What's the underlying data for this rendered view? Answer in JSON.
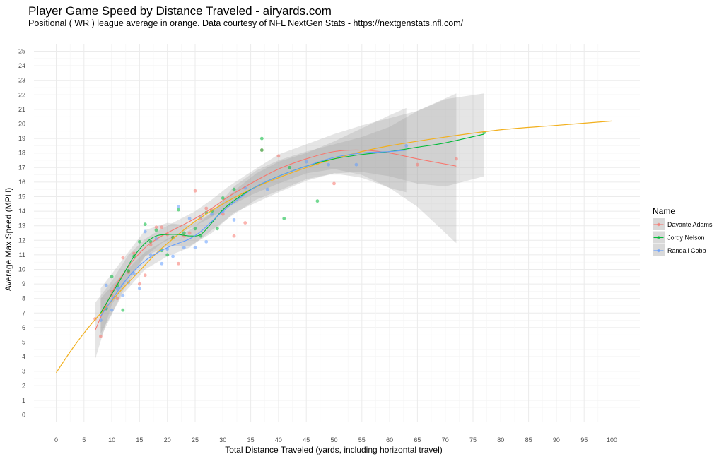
{
  "chart_data": {
    "type": "scatter",
    "title": "Player Game Speed by Distance Traveled - airyards.com",
    "subtitle": "Positional ( WR ) league average in orange. Data courtesy of NFL NextGen Stats - https://nextgenstats.nfl.com/",
    "xlabel": "Total Distance Traveled (yards, including horizontal travel)",
    "ylabel": "Average Max Speed (MPH)",
    "xlim": [
      0,
      100
    ],
    "ylim": [
      0,
      25
    ],
    "xticks": [
      0,
      5,
      10,
      15,
      20,
      25,
      30,
      35,
      40,
      45,
      50,
      55,
      60,
      65,
      70,
      75,
      80,
      85,
      90,
      95,
      100
    ],
    "yticks": [
      0,
      1,
      2,
      3,
      4,
      5,
      6,
      7,
      8,
      9,
      10,
      11,
      12,
      13,
      14,
      15,
      16,
      17,
      18,
      19,
      20,
      21,
      22,
      23,
      24,
      25
    ],
    "grid": true,
    "legend": {
      "title": "Name",
      "position": "right"
    },
    "league_average": {
      "color": "#F2B01E",
      "x": [
        0,
        3,
        6,
        9,
        12,
        15,
        18,
        21,
        25,
        30,
        35,
        40,
        45,
        50,
        55,
        60,
        70,
        80,
        90,
        100
      ],
      "y": [
        2.9,
        4.6,
        6.1,
        7.4,
        8.7,
        9.9,
        11.1,
        12.1,
        13.3,
        14.5,
        15.5,
        16.3,
        17.0,
        17.6,
        18.1,
        18.5,
        19.1,
        19.6,
        19.9,
        20.2
      ]
    },
    "series": [
      {
        "name": "Davante Adams",
        "color": "#F8766D",
        "points": [
          [
            7,
            6.6
          ],
          [
            8,
            5.4
          ],
          [
            9,
            7.4
          ],
          [
            10,
            8.5
          ],
          [
            10,
            8.2
          ],
          [
            11,
            8.0
          ],
          [
            12,
            10.8
          ],
          [
            13,
            9.8
          ],
          [
            14,
            11.1
          ],
          [
            15,
            9.0
          ],
          [
            16,
            9.6
          ],
          [
            17,
            11.7
          ],
          [
            18,
            12.9
          ],
          [
            19,
            12.9
          ],
          [
            20,
            12.4
          ],
          [
            21,
            12.2
          ],
          [
            22,
            10.4
          ],
          [
            23,
            12.3
          ],
          [
            24,
            12.5
          ],
          [
            25,
            15.4
          ],
          [
            26,
            13.5
          ],
          [
            27,
            14.2
          ],
          [
            28,
            14.1
          ],
          [
            30,
            13.8
          ],
          [
            32,
            12.3
          ],
          [
            34,
            13.2
          ],
          [
            37,
            18.2
          ],
          [
            40,
            17.8
          ],
          [
            47,
            17.3
          ],
          [
            50,
            15.9
          ],
          [
            65,
            17.2
          ],
          [
            72,
            17.6
          ]
        ],
        "fit_x": [
          7,
          10,
          13,
          16,
          19,
          22,
          25,
          28,
          31,
          35,
          40,
          45,
          50,
          55,
          60,
          65,
          72
        ],
        "fit_y": [
          5.8,
          8.4,
          10.2,
          11.5,
          12.3,
          12.9,
          13.5,
          14.2,
          15.0,
          15.9,
          16.9,
          17.6,
          18.1,
          18.2,
          18.0,
          17.6,
          17.1
        ],
        "band": [
          [
            7,
            3.8,
            7.7
          ],
          [
            10,
            7.6,
            9.2
          ],
          [
            13,
            9.4,
            11.0
          ],
          [
            16,
            10.9,
            12.1
          ],
          [
            19,
            11.8,
            12.8
          ],
          [
            22,
            12.4,
            13.4
          ],
          [
            25,
            13.0,
            14.0
          ],
          [
            28,
            13.6,
            14.8
          ],
          [
            31,
            14.3,
            15.7
          ],
          [
            35,
            15.1,
            16.7
          ],
          [
            40,
            15.9,
            17.9
          ],
          [
            45,
            16.6,
            18.6
          ],
          [
            50,
            16.9,
            19.3
          ],
          [
            55,
            16.5,
            19.9
          ],
          [
            60,
            15.6,
            20.4
          ],
          [
            65,
            14.3,
            20.9
          ],
          [
            72,
            11.8,
            22.1
          ]
        ]
      },
      {
        "name": "Jordy Nelson",
        "color": "#00BA38",
        "points": [
          [
            9,
            7.3
          ],
          [
            10,
            9.5
          ],
          [
            11,
            8.9
          ],
          [
            12,
            7.2
          ],
          [
            13,
            9.9
          ],
          [
            14,
            10.9
          ],
          [
            15,
            11.9
          ],
          [
            16,
            13.1
          ],
          [
            17,
            11.9
          ],
          [
            18,
            12.7
          ],
          [
            19,
            11.3
          ],
          [
            20,
            11.0
          ],
          [
            21,
            12.2
          ],
          [
            22,
            14.1
          ],
          [
            23,
            12.5
          ],
          [
            25,
            12.8
          ],
          [
            26,
            12.3
          ],
          [
            27,
            13.9
          ],
          [
            28,
            14.0
          ],
          [
            29,
            12.8
          ],
          [
            30,
            14.9
          ],
          [
            32,
            15.5
          ],
          [
            37,
            19.0
          ],
          [
            37,
            18.2
          ],
          [
            41,
            13.5
          ],
          [
            42,
            17.0
          ],
          [
            47,
            14.7
          ],
          [
            77,
            19.4
          ]
        ],
        "fit_x": [
          8,
          10,
          12,
          14,
          16,
          18,
          20,
          22,
          24,
          26,
          28,
          30,
          33,
          36,
          40,
          45,
          50,
          55,
          60,
          65,
          70,
          77
        ],
        "fit_y": [
          7.0,
          8.3,
          9.6,
          10.9,
          11.8,
          12.3,
          12.4,
          12.4,
          12.3,
          12.4,
          13.2,
          14.1,
          15.0,
          15.7,
          16.4,
          17.1,
          17.6,
          17.9,
          18.1,
          18.4,
          18.7,
          19.3
        ],
        "band": [
          [
            8,
            5.3,
            8.7
          ],
          [
            12,
            8.5,
            10.7
          ],
          [
            16,
            10.9,
            12.7
          ],
          [
            20,
            11.6,
            13.2
          ],
          [
            24,
            11.6,
            13.0
          ],
          [
            28,
            12.5,
            13.9
          ],
          [
            32,
            13.9,
            15.7
          ],
          [
            36,
            14.6,
            16.8
          ],
          [
            40,
            15.3,
            17.5
          ],
          [
            45,
            16.1,
            18.1
          ],
          [
            50,
            16.6,
            18.6
          ],
          [
            55,
            16.7,
            19.1
          ],
          [
            60,
            16.4,
            19.8
          ],
          [
            65,
            15.9,
            20.9
          ],
          [
            70,
            15.7,
            21.7
          ],
          [
            77,
            16.4,
            22.1
          ]
        ]
      },
      {
        "name": "Randall Cobb",
        "color": "#619CFF",
        "points": [
          [
            8,
            6.5
          ],
          [
            9,
            8.9
          ],
          [
            10,
            7.2
          ],
          [
            11,
            8.7
          ],
          [
            12,
            8.2
          ],
          [
            13,
            9.1
          ],
          [
            14,
            9.7
          ],
          [
            15,
            8.7
          ],
          [
            16,
            12.6
          ],
          [
            17,
            11.0
          ],
          [
            18,
            12.1
          ],
          [
            19,
            10.4
          ],
          [
            20,
            11.4
          ],
          [
            21,
            10.9
          ],
          [
            22,
            14.3
          ],
          [
            23,
            11.5
          ],
          [
            24,
            13.5
          ],
          [
            25,
            11.5
          ],
          [
            26,
            13.6
          ],
          [
            27,
            11.9
          ],
          [
            28,
            13.8
          ],
          [
            30,
            14.0
          ],
          [
            32,
            13.4
          ],
          [
            34,
            15.6
          ],
          [
            38,
            15.5
          ],
          [
            45,
            17.4
          ],
          [
            49,
            17.2
          ],
          [
            54,
            17.2
          ],
          [
            63,
            18.5
          ]
        ],
        "fit_x": [
          8,
          10,
          12,
          14,
          16,
          18,
          20,
          22,
          24,
          26,
          28,
          30,
          33,
          36,
          40,
          45,
          50,
          55,
          60,
          63
        ],
        "fit_y": [
          6.8,
          7.9,
          9.0,
          9.9,
          10.6,
          11.1,
          11.5,
          11.8,
          12.1,
          12.6,
          13.3,
          14.0,
          14.9,
          15.7,
          16.4,
          17.1,
          17.7,
          18.0,
          18.1,
          18.2
        ],
        "band": [
          [
            8,
            5.6,
            8.0
          ],
          [
            12,
            8.3,
            9.7
          ],
          [
            16,
            10.0,
            11.2
          ],
          [
            20,
            10.9,
            12.1
          ],
          [
            24,
            11.5,
            12.7
          ],
          [
            28,
            12.7,
            13.9
          ],
          [
            32,
            13.8,
            15.4
          ],
          [
            36,
            14.8,
            16.6
          ],
          [
            40,
            15.4,
            17.4
          ],
          [
            45,
            16.2,
            18.0
          ],
          [
            50,
            16.6,
            18.8
          ],
          [
            55,
            16.3,
            19.7
          ],
          [
            60,
            15.6,
            20.6
          ],
          [
            63,
            15.3,
            21.1
          ]
        ]
      }
    ]
  }
}
